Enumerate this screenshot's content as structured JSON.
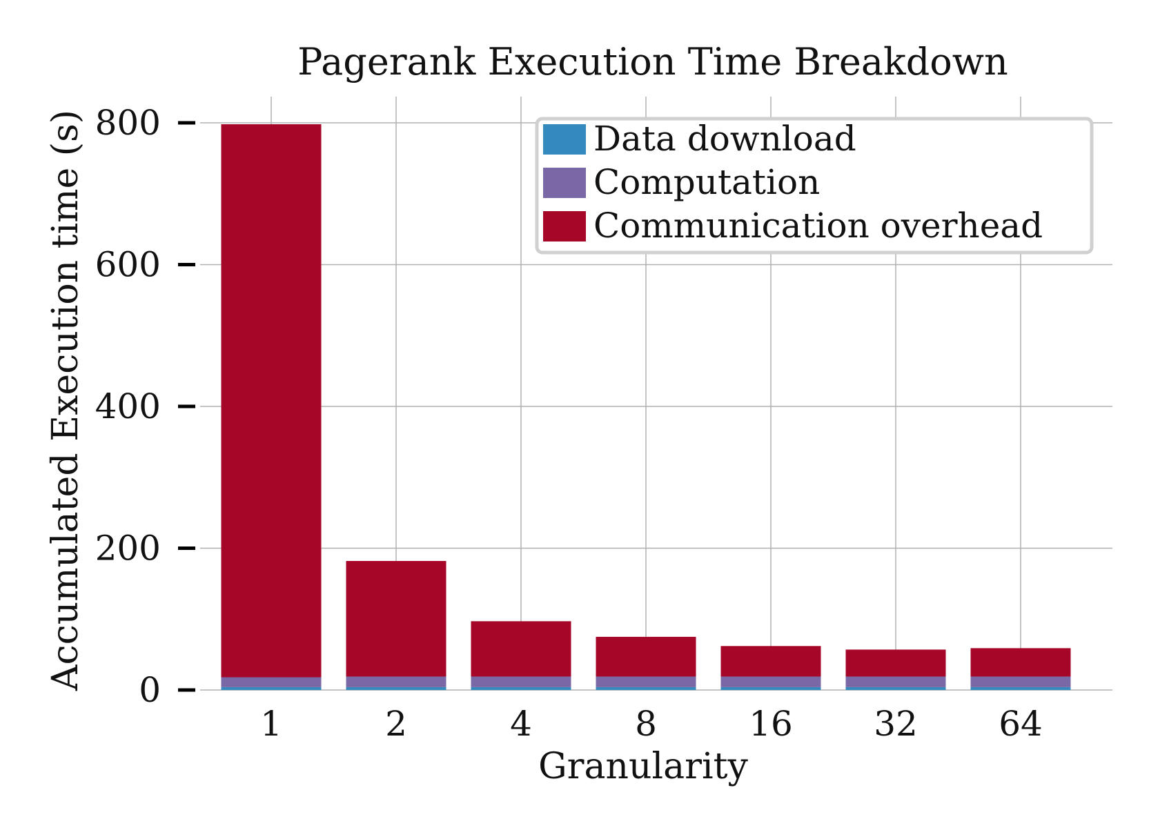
{
  "chart_data": {
    "type": "bar",
    "stacked": true,
    "title": "Pagerank Execution Time Breakdown",
    "xlabel": "Granularity",
    "ylabel": "Accumulated Execution time (s)",
    "categories": [
      "1",
      "2",
      "4",
      "8",
      "16",
      "32",
      "64"
    ],
    "ylim": [
      0,
      800
    ],
    "yticks": [
      "0",
      "200",
      "400",
      "600",
      "800"
    ],
    "grid": true,
    "legend_position": "top-right",
    "series": [
      {
        "name": "Data download",
        "color": "#348abd",
        "values": [
          4,
          4,
          4,
          4,
          4,
          4,
          4
        ]
      },
      {
        "name": "Computation",
        "color": "#7a68a6",
        "values": [
          14,
          15,
          15,
          15,
          15,
          15,
          15
        ]
      },
      {
        "name": "Communication overhead",
        "color": "#a60628",
        "values": [
          780,
          163,
          78,
          56,
          43,
          38,
          40
        ]
      }
    ]
  }
}
